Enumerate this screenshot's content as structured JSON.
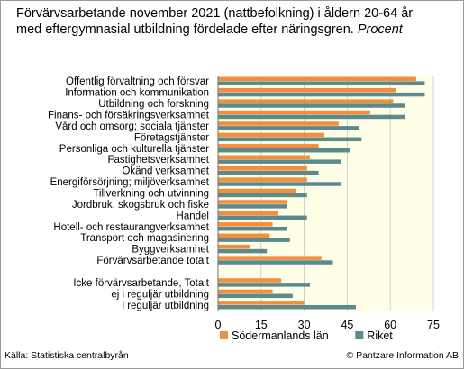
{
  "title": "Förvärvsarbetande november 2021 (nattbefolkning) i åldern 20-64 år med eftergymnasial utbildning fördelade efter näringsgren.",
  "subtitle": "Procent",
  "source": "Källa: Statistiska centralbyrån",
  "copyright": "© Pantzare Information AB",
  "colors": {
    "sodermanland": "#f28e3c",
    "riket": "#5b8a8c",
    "plot_bg": "#ffffe8",
    "grid": "#c8c8c8"
  },
  "chart_data": {
    "type": "bar",
    "orientation": "horizontal",
    "categories": [
      "Offentlig förvaltning och försvar",
      "Information och kommunikation",
      "Utbildning och forskning",
      "Finans- och försäkringsverksamhet",
      "Vård och omsorg; sociala tjänster",
      "Företagstjänster",
      "Personliga och kulturella tjänster",
      "Fastighetsverksamhet",
      "Okänd verksamhet",
      "Energiförsörjning; miljöverksamhet",
      "Tillverkning och utvinning",
      "Jordbruk, skogsbruk och fiske",
      "Handel",
      "Hotell- och restaurangverksamhet",
      "Transport och magasinering",
      "Byggverksamhet",
      "Förvärvsarbetande totalt",
      "",
      "Icke förvärvsarbetande, Totalt",
      "ej i reguljär utbildning",
      "i reguljär utbildning"
    ],
    "series": [
      {
        "name": "Södermanlands län",
        "values": [
          69,
          62,
          61,
          53,
          42,
          37,
          35,
          32,
          31,
          31,
          27,
          24,
          21,
          19,
          18,
          11,
          36,
          null,
          22,
          19,
          30
        ]
      },
      {
        "name": "Riket",
        "values": [
          72,
          72,
          65,
          65,
          49,
          50,
          46,
          43,
          35,
          43,
          31,
          24,
          31,
          24,
          25,
          17,
          40,
          null,
          32,
          26,
          48
        ]
      }
    ],
    "xlim": [
      0,
      75
    ],
    "xticks": [
      0,
      15,
      30,
      45,
      60,
      75
    ],
    "grid": true,
    "legend_position": "bottom"
  }
}
